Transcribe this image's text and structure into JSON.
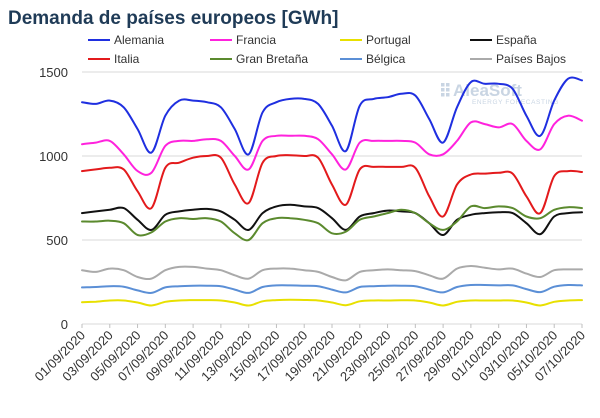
{
  "chart_data": {
    "type": "line",
    "title": "Demanda de países europeos [GWh]",
    "xlabel": "",
    "ylabel": "",
    "ylim": [
      0,
      1500
    ],
    "yticks": [
      0,
      500,
      1000,
      1500
    ],
    "grid": true,
    "legend_position": "top",
    "x": [
      "01/09/2020",
      "02/09/2020",
      "03/09/2020",
      "04/09/2020",
      "05/09/2020",
      "06/09/2020",
      "07/09/2020",
      "08/09/2020",
      "09/09/2020",
      "10/09/2020",
      "11/09/2020",
      "12/09/2020",
      "13/09/2020",
      "14/09/2020",
      "15/09/2020",
      "16/09/2020",
      "17/09/2020",
      "18/09/2020",
      "19/09/2020",
      "20/09/2020",
      "21/09/2020",
      "22/09/2020",
      "23/09/2020",
      "24/09/2020",
      "25/09/2020",
      "26/09/2020",
      "27/09/2020",
      "28/09/2020",
      "29/09/2020",
      "30/09/2020",
      "01/10/2020",
      "02/10/2020",
      "03/10/2020",
      "04/10/2020",
      "05/10/2020",
      "06/10/2020",
      "07/10/2020"
    ],
    "x_tick_labels": [
      "01/09/2020",
      "03/09/2020",
      "05/09/2020",
      "07/09/2020",
      "09/09/2020",
      "11/09/2020",
      "13/09/2020",
      "15/09/2020",
      "17/09/2020",
      "19/09/2020",
      "21/09/2020",
      "23/09/2020",
      "25/09/2020",
      "27/09/2020",
      "29/09/2020",
      "01/10/2020",
      "03/10/2020",
      "05/10/2020",
      "07/10/2020"
    ],
    "series": [
      {
        "name": "Alemania",
        "color": "#1f2fe0",
        "values": [
          1320,
          1310,
          1330,
          1290,
          1160,
          1020,
          1240,
          1330,
          1330,
          1320,
          1290,
          1160,
          1010,
          1260,
          1320,
          1340,
          1340,
          1310,
          1180,
          1030,
          1300,
          1340,
          1350,
          1370,
          1360,
          1220,
          1080,
          1290,
          1440,
          1430,
          1430,
          1400,
          1240,
          1120,
          1330,
          1460,
          1450
        ]
      },
      {
        "name": "Francia",
        "color": "#ff22dd",
        "values": [
          1070,
          1080,
          1090,
          1010,
          910,
          900,
          1060,
          1090,
          1090,
          1100,
          1090,
          1000,
          920,
          1090,
          1120,
          1120,
          1120,
          1100,
          1010,
          920,
          1080,
          1090,
          1090,
          1090,
          1080,
          1010,
          1010,
          1090,
          1200,
          1190,
          1170,
          1190,
          1090,
          1040,
          1190,
          1240,
          1210
        ]
      },
      {
        "name": "Portugal",
        "color": "#e8e000",
        "values": [
          130,
          133,
          140,
          140,
          128,
          110,
          132,
          140,
          142,
          142,
          140,
          128,
          110,
          135,
          142,
          144,
          143,
          140,
          128,
          112,
          135,
          140,
          140,
          141,
          140,
          128,
          110,
          132,
          140,
          140,
          140,
          140,
          128,
          110,
          132,
          140,
          142
        ]
      },
      {
        "name": "España",
        "color": "#111111",
        "values": [
          660,
          670,
          680,
          690,
          620,
          560,
          650,
          670,
          680,
          685,
          670,
          620,
          560,
          660,
          700,
          710,
          700,
          690,
          630,
          560,
          640,
          660,
          675,
          670,
          660,
          600,
          530,
          620,
          650,
          660,
          665,
          660,
          600,
          535,
          640,
          660,
          665
        ]
      },
      {
        "name": "Italia",
        "color": "#e31a1c",
        "values": [
          910,
          920,
          930,
          920,
          790,
          690,
          930,
          960,
          990,
          1000,
          990,
          830,
          720,
          960,
          1000,
          1005,
          1000,
          990,
          830,
          710,
          920,
          935,
          935,
          935,
          930,
          760,
          640,
          830,
          890,
          895,
          900,
          895,
          760,
          660,
          880,
          910,
          905
        ]
      },
      {
        "name": "Gran Bretaña",
        "color": "#5b8a2e",
        "values": [
          610,
          610,
          615,
          600,
          530,
          545,
          610,
          630,
          625,
          630,
          610,
          540,
          500,
          600,
          630,
          630,
          620,
          600,
          540,
          550,
          620,
          640,
          660,
          680,
          660,
          600,
          560,
          610,
          700,
          690,
          700,
          690,
          640,
          630,
          680,
          695,
          690
        ]
      },
      {
        "name": "Bélgica",
        "color": "#5b8fd6",
        "values": [
          218,
          220,
          225,
          222,
          200,
          185,
          218,
          225,
          228,
          228,
          225,
          205,
          185,
          220,
          230,
          230,
          228,
          225,
          205,
          188,
          220,
          225,
          228,
          228,
          225,
          205,
          188,
          220,
          232,
          232,
          230,
          230,
          208,
          190,
          222,
          232,
          230
        ]
      },
      {
        "name": "Países Bajos",
        "color": "#aaaaaa",
        "values": [
          320,
          310,
          330,
          320,
          280,
          270,
          320,
          340,
          340,
          330,
          320,
          290,
          270,
          320,
          330,
          330,
          320,
          310,
          280,
          260,
          310,
          320,
          325,
          320,
          315,
          290,
          270,
          330,
          345,
          335,
          325,
          330,
          300,
          280,
          320,
          325,
          325
        ]
      }
    ]
  },
  "logo": {
    "name": "AleaSoft",
    "tagline": "ENERGY FORECASTING"
  }
}
